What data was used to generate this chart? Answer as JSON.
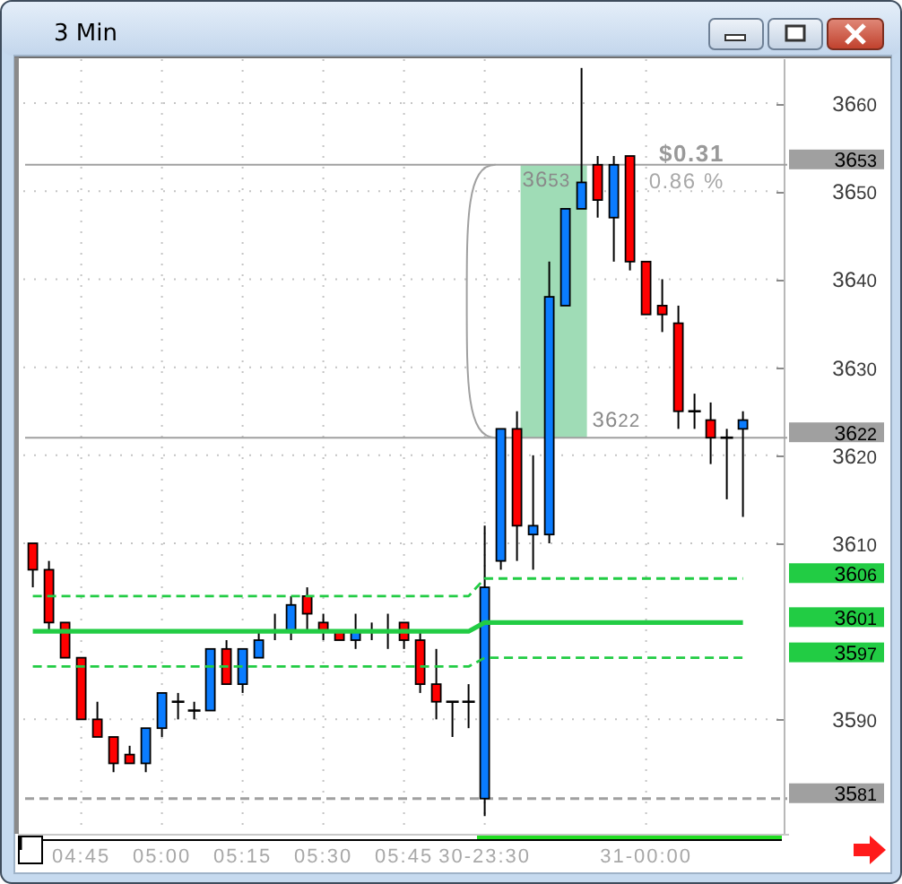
{
  "chart_data": {
    "type": "candlestick",
    "title": "3 Min",
    "categories": [
      null,
      null,
      null,
      "04:45",
      null,
      null,
      null,
      null,
      "05:00",
      null,
      null,
      null,
      null,
      "05:15",
      null,
      null,
      null,
      null,
      "05:30",
      null,
      null,
      null,
      null,
      "05:45",
      null,
      null,
      null,
      null,
      "30-23:30",
      null,
      null,
      null,
      null,
      null,
      null,
      null,
      null,
      null,
      "31-00:00",
      null,
      null,
      null,
      null,
      null,
      null
    ],
    "ohlc": [
      [
        3610,
        3610,
        3605,
        3607
      ],
      [
        3607,
        3608,
        3600,
        3601
      ],
      [
        3601,
        3601,
        3597,
        3597
      ],
      [
        3597,
        3597,
        3590,
        3590
      ],
      [
        3590,
        3592,
        3588,
        3588
      ],
      [
        3588,
        3588,
        3584,
        3585
      ],
      [
        3586,
        3587,
        3585,
        3585
      ],
      [
        3585,
        3589,
        3584,
        3589
      ],
      [
        3589,
        3593,
        3588,
        3593
      ],
      [
        3592,
        3593,
        3590,
        3592
      ],
      [
        3591,
        3592,
        3590,
        3591
      ],
      [
        3591,
        3598,
        3591,
        3598
      ],
      [
        3598,
        3599,
        3594,
        3594
      ],
      [
        3594,
        3598,
        3593,
        3598
      ],
      [
        3597,
        3600,
        3597,
        3599
      ],
      [
        3600,
        3602,
        3599,
        3600
      ],
      [
        3600,
        3604,
        3599,
        3603
      ],
      [
        3604,
        3605,
        3600,
        3602
      ],
      [
        3601,
        3602,
        3599,
        3600
      ],
      [
        3600,
        3600,
        3599,
        3599
      ],
      [
        3599,
        3602,
        3598,
        3600
      ],
      [
        3600,
        3601,
        3599,
        3600
      ],
      [
        3600,
        3602,
        3598,
        3600
      ],
      [
        3601,
        3601,
        3598,
        3599
      ],
      [
        3599,
        3600,
        3593,
        3594
      ],
      [
        3594,
        3598,
        3590,
        3592
      ],
      [
        3592,
        3592,
        3588,
        3592
      ],
      [
        3592,
        3594,
        3589,
        3592
      ],
      [
        3581,
        3612,
        3579,
        3605
      ],
      [
        3608,
        3623,
        3607,
        3623
      ],
      [
        3623,
        3625,
        3608,
        3612
      ],
      [
        3611,
        3620,
        3607,
        3612
      ],
      [
        3611,
        3642,
        3610,
        3638
      ],
      [
        3637,
        3648,
        3637,
        3648
      ],
      [
        3648,
        3664,
        3648,
        3651
      ],
      [
        3653,
        3654,
        3647,
        3649
      ],
      [
        3647,
        3654,
        3642,
        3653
      ],
      [
        3654,
        3654,
        3641,
        3642
      ],
      [
        3642,
        3642,
        3636,
        3636
      ],
      [
        3637,
        3640,
        3634,
        3636
      ],
      [
        3635,
        3637,
        3623,
        3625
      ],
      [
        3625,
        3627,
        3623,
        3625
      ],
      [
        3624,
        3626,
        3619,
        3622
      ],
      [
        3622,
        3623,
        3615,
        3622
      ],
      [
        3623,
        3625,
        3613,
        3624
      ]
    ],
    "colors": [
      "#ff0000",
      "#ff0000",
      "#ff0000",
      "#ff0000",
      "#ff0000",
      "#ff0000",
      "#ff0000",
      "#0a7cff",
      "#0a7cff",
      "#000000",
      "#000000",
      "#0a7cff",
      "#ff0000",
      "#0a7cff",
      "#0a7cff",
      "#000000",
      "#0a7cff",
      "#ff0000",
      "#ff0000",
      "#ff0000",
      "#0a7cff",
      "#000000",
      "#000000",
      "#ff0000",
      "#ff0000",
      "#ff0000",
      "#000000",
      "#000000",
      "#0a7cff",
      "#0a7cff",
      "#ff0000",
      "#0a7cff",
      "#0a7cff",
      "#0a7cff",
      "#0a7cff",
      "#ff0000",
      "#0a7cff",
      "#ff0000",
      "#ff0000",
      "#ff0000",
      "#ff0000",
      "#000000",
      "#ff0000",
      "#000000",
      "#0a7cff"
    ],
    "series": [
      {
        "type": "line",
        "color": "#22cc44",
        "line_style": "dashed",
        "values": [
          3604,
          3604,
          3604,
          3604,
          3604,
          3604,
          3604,
          3604,
          3604,
          3604,
          3604,
          3604,
          3604,
          3604,
          3604,
          3604,
          3604,
          3604,
          3604,
          3604,
          3604,
          3604,
          3604,
          3604,
          3604,
          3604,
          3604,
          3604,
          3606,
          3606,
          3606,
          3606,
          3606,
          3606,
          3606,
          3606,
          3606,
          3606,
          3606,
          3606,
          3606,
          3606,
          3606,
          3606,
          3606
        ]
      },
      {
        "type": "line",
        "color": "#22cc44",
        "line_style": "solid",
        "values": [
          3600,
          3600,
          3600,
          3600,
          3600,
          3600,
          3600,
          3600,
          3600,
          3600,
          3600,
          3600,
          3600,
          3600,
          3600,
          3600,
          3600,
          3600,
          3600,
          3600,
          3600,
          3600,
          3600,
          3600,
          3600,
          3600,
          3600,
          3600,
          3601,
          3601,
          3601,
          3601,
          3601,
          3601,
          3601,
          3601,
          3601,
          3601,
          3601,
          3601,
          3601,
          3601,
          3601,
          3601,
          3601
        ]
      },
      {
        "type": "line",
        "color": "#22cc44",
        "line_style": "dashed",
        "values": [
          3596,
          3596,
          3596,
          3596,
          3596,
          3596,
          3596,
          3596,
          3596,
          3596,
          3596,
          3596,
          3596,
          3596,
          3596,
          3596,
          3596,
          3596,
          3596,
          3596,
          3596,
          3596,
          3596,
          3596,
          3596,
          3596,
          3596,
          3596,
          3597,
          3597,
          3597,
          3597,
          3597,
          3597,
          3597,
          3597,
          3597,
          3597,
          3597,
          3597,
          3597,
          3597,
          3597,
          3597,
          3597
        ]
      }
    ],
    "ylim": [
      3577,
      3665
    ],
    "yticks": [
      3590,
      3610,
      3620,
      3630,
      3640,
      3650,
      3660
    ],
    "grid": true,
    "ref_lines": [
      {
        "axis": "y",
        "value": 3653,
        "label": "3653",
        "color": "#a0a0a0",
        "line_style": "solid"
      },
      {
        "axis": "y",
        "value": 3622,
        "label": "3622",
        "color": "#a0a0a0",
        "line_style": "solid"
      },
      {
        "axis": "y",
        "value": 3581,
        "label": "3581",
        "color": "#a0a0a0",
        "line_style": "dashed"
      }
    ],
    "annotations": [
      "3653",
      "3622",
      "$0.31",
      "0.86 %",
      "3606",
      "3601",
      "3597"
    ]
  }
}
